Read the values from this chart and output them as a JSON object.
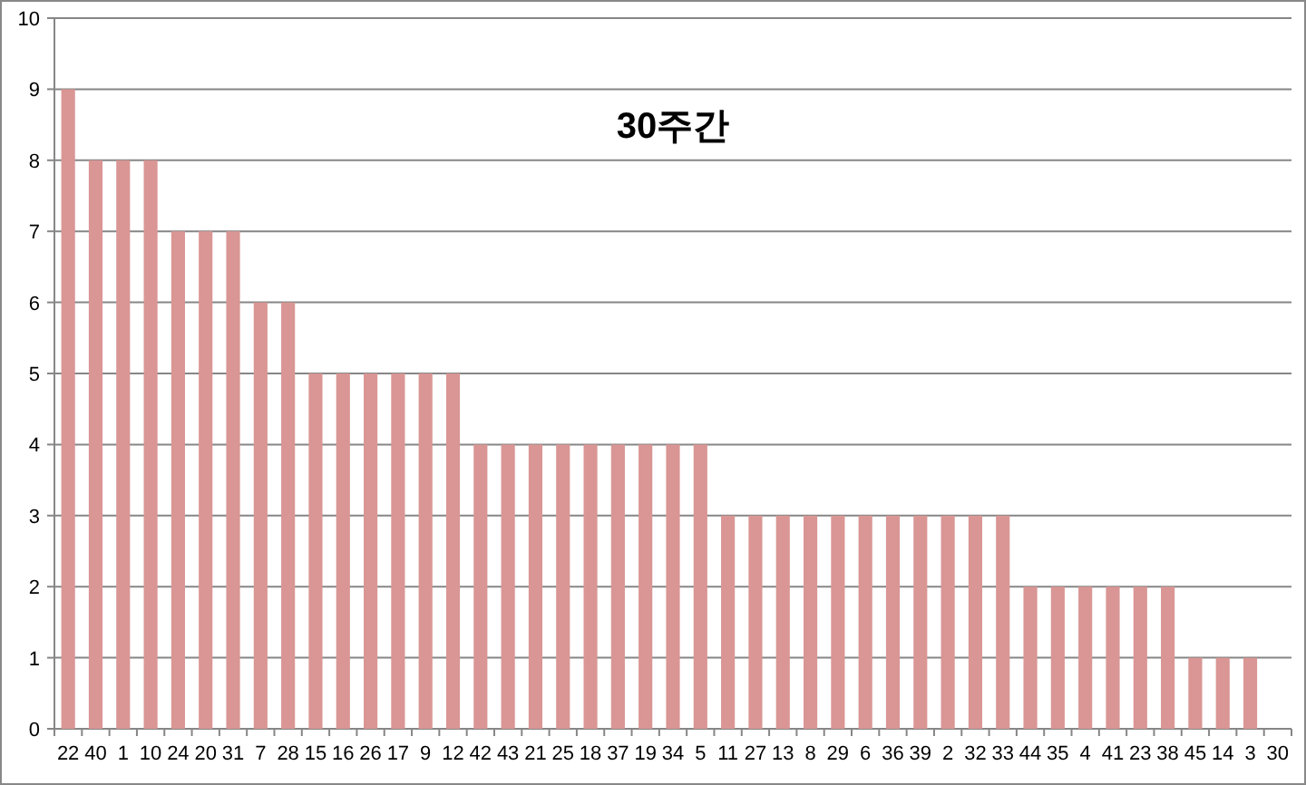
{
  "chart_data": {
    "type": "bar",
    "title": "30주간",
    "categories": [
      "22",
      "40",
      "1",
      "10",
      "24",
      "20",
      "31",
      "7",
      "28",
      "15",
      "16",
      "26",
      "17",
      "9",
      "12",
      "42",
      "43",
      "21",
      "25",
      "18",
      "37",
      "19",
      "34",
      "5",
      "11",
      "27",
      "13",
      "8",
      "29",
      "6",
      "36",
      "39",
      "2",
      "32",
      "33",
      "44",
      "35",
      "4",
      "41",
      "23",
      "38",
      "45",
      "14",
      "3",
      "30"
    ],
    "values": [
      9,
      8,
      8,
      8,
      7,
      7,
      7,
      6,
      6,
      5,
      5,
      5,
      5,
      5,
      5,
      4,
      4,
      4,
      4,
      4,
      4,
      4,
      4,
      4,
      3,
      3,
      3,
      3,
      3,
      3,
      3,
      3,
      3,
      3,
      3,
      2,
      2,
      2,
      2,
      2,
      2,
      1,
      1,
      1,
      0
    ],
    "color": "#d99694",
    "ylim": [
      0,
      10
    ],
    "yticks": [
      0,
      1,
      2,
      3,
      4,
      5,
      6,
      7,
      8,
      9,
      10
    ],
    "grid": "y"
  }
}
